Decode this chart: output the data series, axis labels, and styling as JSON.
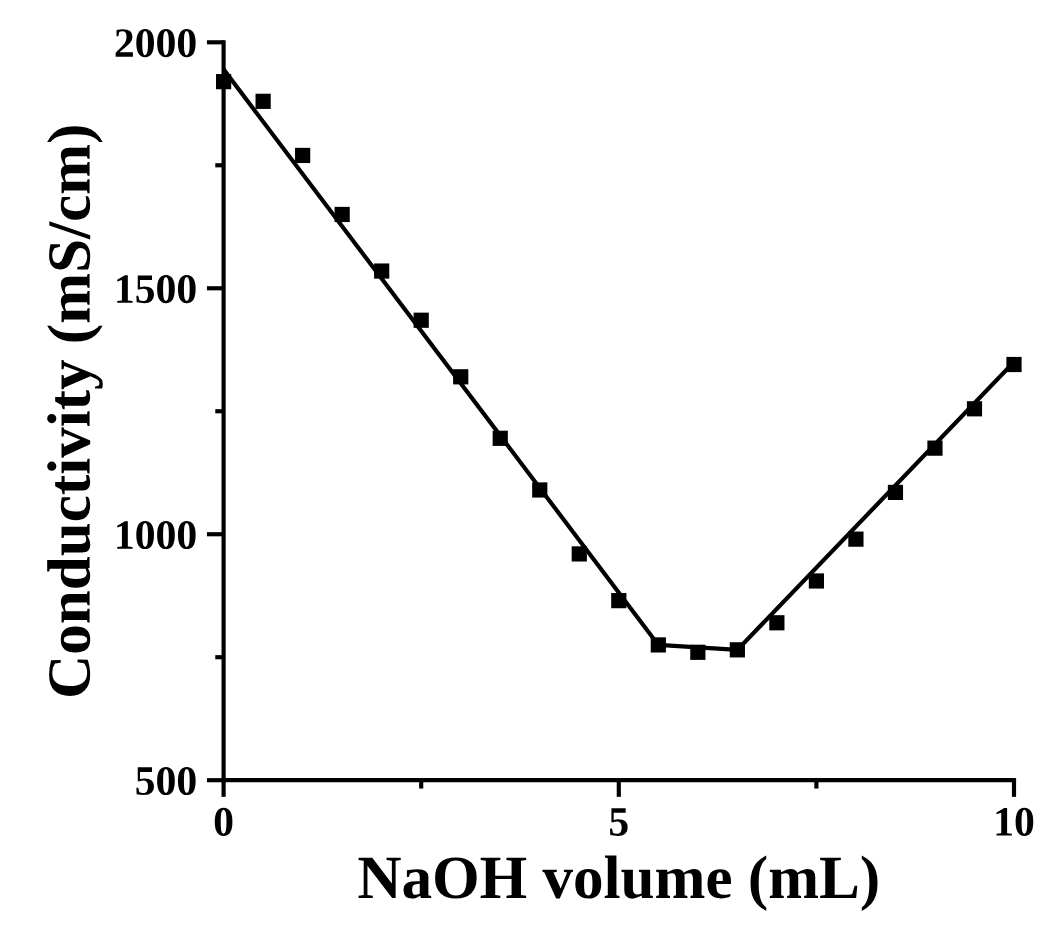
{
  "chart_data": {
    "type": "scatter",
    "xlabel": "NaOH volume (mL)",
    "ylabel": "Conductivity (mS/cm)",
    "x": [
      0,
      0.5,
      1,
      1.5,
      2,
      2.5,
      3,
      3.5,
      4,
      4.5,
      5,
      5.5,
      6,
      6.5,
      7,
      7.5,
      8,
      8.5,
      9,
      9.5,
      10
    ],
    "series": [
      {
        "color": "#000000",
        "marker": "square",
        "values": [
          1920,
          1880,
          1770,
          1650,
          1535,
          1435,
          1320,
          1195,
          1090,
          960,
          865,
          775,
          760,
          765,
          820,
          905,
          990,
          1085,
          1175,
          1255,
          1345
        ]
      },
      {
        "type": "line",
        "color": "#000000",
        "marker": "none",
        "line_style": "solid",
        "x": [
          0,
          5.5,
          6.5,
          10
        ],
        "values": [
          1945,
          775,
          765,
          1350
        ]
      }
    ],
    "xlim": [
      0,
      10
    ],
    "ylim": [
      500,
      2000
    ],
    "xticks": [
      0,
      {
        "value": 2.5,
        "label": null
      },
      5,
      {
        "value": 7.5,
        "label": null
      },
      10
    ],
    "yticks": [
      500,
      {
        "value": 750,
        "label": null
      },
      1000,
      {
        "value": 1250,
        "label": null
      },
      1500,
      {
        "value": 1750,
        "label": null
      },
      2000
    ],
    "grid": false,
    "legend": false
  }
}
